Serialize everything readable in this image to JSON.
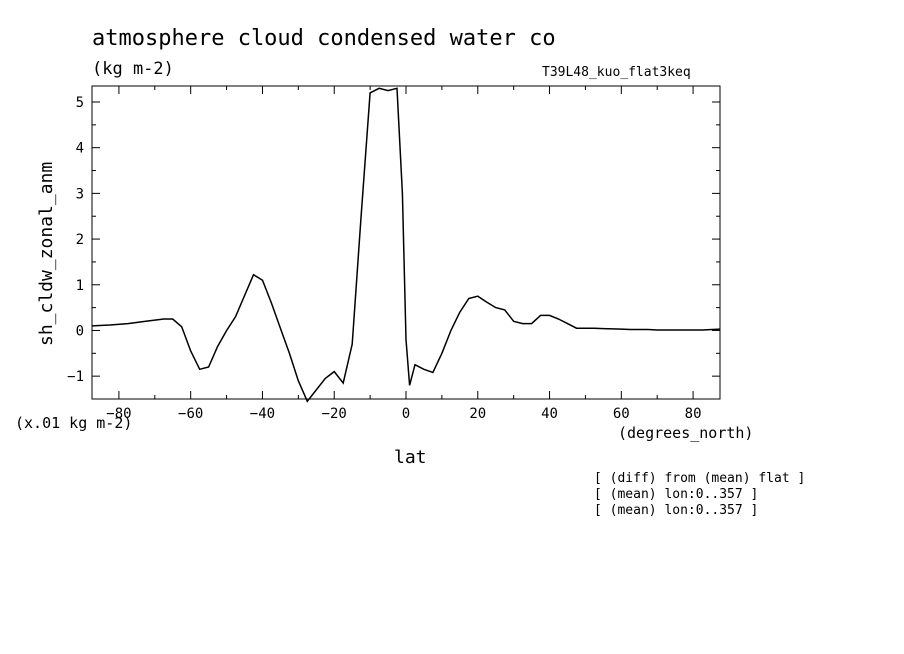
{
  "chart_data": {
    "type": "line",
    "title": "atmosphere cloud condensed water co",
    "units": "(kg m-2)",
    "experiment": "T39L48_kuo_flat3keq",
    "ylabel": "sh_cldw_zonal_anm",
    "xlabel": "lat",
    "xunits": "(degrees_north)",
    "yscale_note": "(x.01 kg m-2)",
    "xlim": [
      -87.5,
      87.5
    ],
    "ylim": [
      -1.5,
      5.35
    ],
    "xticks": [
      -80,
      -60,
      -40,
      -20,
      0,
      20,
      40,
      60,
      80
    ],
    "yticks": [
      -1,
      0,
      1,
      2,
      3,
      4,
      5
    ],
    "grid": false,
    "annotations": [
      "[ (diff) from (mean) flat ]",
      "[ (mean) lon:0..357 ]",
      "[ (mean) lon:0..357 ]"
    ],
    "series": [
      {
        "x": [
          -87.5,
          -82.5,
          -77.5,
          -72.5,
          -67.5,
          -65,
          -62.5,
          -60,
          -57.5,
          -55,
          -52.5,
          -50,
          -47.5,
          -42.5,
          -40,
          -37.5,
          -35,
          -32.5,
          -30,
          -27.5,
          -25,
          -22.5,
          -20,
          -17.5,
          -15,
          -12.5,
          -10,
          -7.5,
          -5,
          -2.5,
          -1,
          0,
          1,
          2.5,
          5,
          7.5,
          10,
          12.5,
          15,
          17.5,
          20,
          22.5,
          25,
          27.5,
          30,
          32.5,
          35,
          37.5,
          40,
          42.5,
          45,
          47.5,
          50,
          52.5,
          55,
          60,
          62.5,
          65,
          67.5,
          70,
          72.5,
          75,
          80,
          82.5,
          87.5
        ],
        "y": [
          0.1,
          0.12,
          0.15,
          0.2,
          0.25,
          0.25,
          0.08,
          -0.45,
          -0.85,
          -0.8,
          -0.35,
          0.0,
          0.3,
          1.22,
          1.1,
          0.6,
          0.05,
          -0.5,
          -1.1,
          -1.55,
          -1.3,
          -1.05,
          -0.9,
          -1.15,
          -0.3,
          2.5,
          5.2,
          5.3,
          5.25,
          5.3,
          3.0,
          -0.2,
          -1.2,
          -0.75,
          -0.85,
          -0.92,
          -0.5,
          0.0,
          0.4,
          0.7,
          0.75,
          0.62,
          0.5,
          0.45,
          0.2,
          0.15,
          0.15,
          0.33,
          0.33,
          0.25,
          0.15,
          0.05,
          0.05,
          0.05,
          0.04,
          0.03,
          0.02,
          0.02,
          0.02,
          0.01,
          0.01,
          0.01,
          0.01,
          0.01,
          0.03
        ]
      }
    ]
  }
}
